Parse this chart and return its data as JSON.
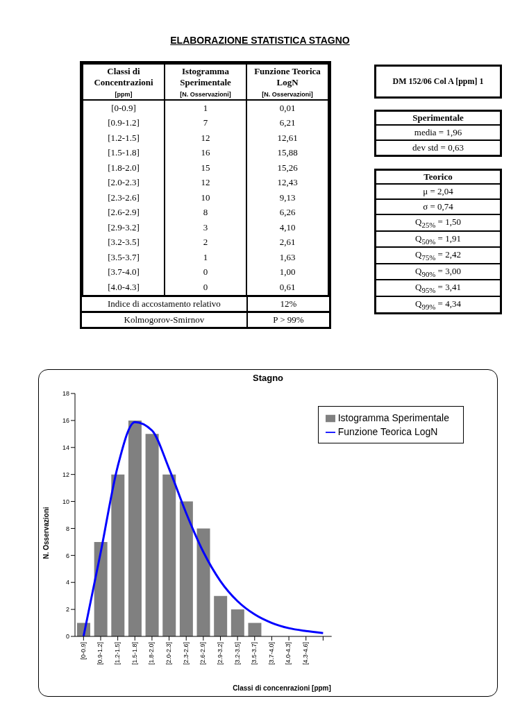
{
  "chart_data": [
    {
      "type": "other",
      "title": "ELABORAZIONE STATISTICA STAGNO",
      "xlabel": "Classi di Concentrazioni\n[ppm]",
      "categories": [
        "[0-0.9]",
        "[0.9-1.2]",
        "[1.2-1.5]",
        "[1.5-1.8]",
        "[1.8-2.0]",
        "[2.0-2.3]",
        "[2.3-2.6]",
        "[2.6-2.9]",
        "[2.9-3.2]",
        "[3.2-3.5]",
        "[3.5-3.7]",
        "[3.7-4.0]",
        "[4.0-4.3]"
      ],
      "series": [
        {
          "name": "Istogramma Sperimentale\n[N. Osservazioni]",
          "values": [
            1,
            7,
            12,
            16,
            15,
            12,
            10,
            8,
            3,
            2,
            1,
            0,
            0
          ]
        },
        {
          "name": "Funzione Teorica LogN\n[N. Osservazioni]",
          "values": [
            0.01,
            6.21,
            12.61,
            15.88,
            15.26,
            12.43,
            9.13,
            6.26,
            4.1,
            2.61,
            1.63,
            1.0,
            0.61
          ],
          "value_labels": [
            "0,01",
            "6,21",
            "12,61",
            "15,88",
            "15,26",
            "12,43",
            "9,13",
            "6,26",
            "4,10",
            "2,61",
            "1,63",
            "1,00",
            "0,61"
          ]
        }
      ],
      "data_labels": true,
      "annotations": [
        "Indice di accostamento relativo",
        "12%",
        "Kolmogorov-Smirnov",
        "P > 99%"
      ]
    },
    {
      "type": "other",
      "title": "DM 152/06 Col A [ppm]  1"
    },
    {
      "type": "other",
      "title": "Sperimentale",
      "annotations": [
        "media = 1,96",
        "dev std = 0,63"
      ]
    },
    {
      "type": "other",
      "title": "Teorico",
      "annotations": [
        "μ = 2,04",
        "σ = 0,74",
        "Q$_{25%}$ = 1,50",
        "Q$_{50%}$ = 1,91",
        "Q$_{75%}$ = 2,42",
        "Q$_{90%}$ = 3,00",
        "Q$_{95%}$ = 3,41",
        "Q$_{99%}$ = 4,34"
      ]
    },
    {
      "type": "bar",
      "title": "Stagno",
      "xlabel": "Classi di concenrazioni [ppm]",
      "ylabel": "N. Osservazioni",
      "categories": [
        "[0-0.9]",
        "[0.9-1.2]",
        "[1.2-1.5]",
        "[1.5-1.8]",
        "[1.8-2.0]",
        "[2.0-2.3]",
        "[2.3-2.6]",
        "[2.6-2.9]",
        "[2.9-3.2]",
        "[3.2-3.5]",
        "[3.5-3.7]",
        "[3.7-4.0]",
        "[4.0-4.3]",
        "[4.3-4.6]",
        null
      ],
      "series": [
        {
          "name": "Istogramma Sperimentale",
          "color": "#808080",
          "values": [
            1,
            7,
            12,
            16,
            15,
            12,
            10,
            8,
            3,
            2,
            1,
            0,
            0,
            null,
            null
          ]
        },
        {
          "name": "Funzione Teorica LogN",
          "type": "line",
          "color": "#0000ff",
          "values": [
            0.01,
            6.21,
            12.61,
            15.88,
            15.26,
            12.43,
            9.13,
            6.26,
            4.1,
            2.61,
            1.63,
            1.0,
            0.61,
            0.4,
            0.25
          ]
        }
      ],
      "ylim": [
        0,
        18
      ],
      "yticks": [
        0,
        2,
        4,
        6,
        8,
        10,
        12,
        14,
        16,
        18
      ],
      "legend": "top right",
      "marker": "none"
    }
  ]
}
